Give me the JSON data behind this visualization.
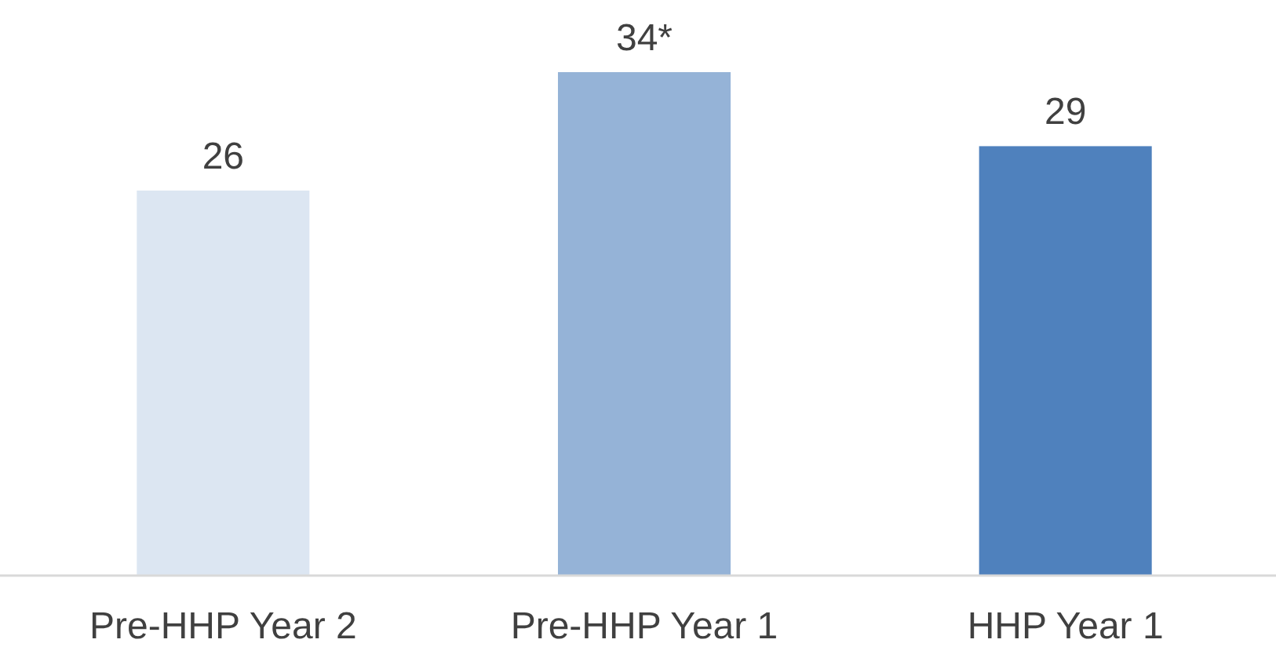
{
  "chart_data": {
    "type": "bar",
    "categories": [
      "Pre-HHP Year 2",
      "Pre-HHP Year 1",
      "HHP Year 1"
    ],
    "values": [
      26,
      34,
      29
    ],
    "colors": [
      "#dce6f2",
      "#95b3d7",
      "#4f81bd"
    ],
    "value_labels": [
      "26",
      "34*",
      "29"
    ]
  }
}
